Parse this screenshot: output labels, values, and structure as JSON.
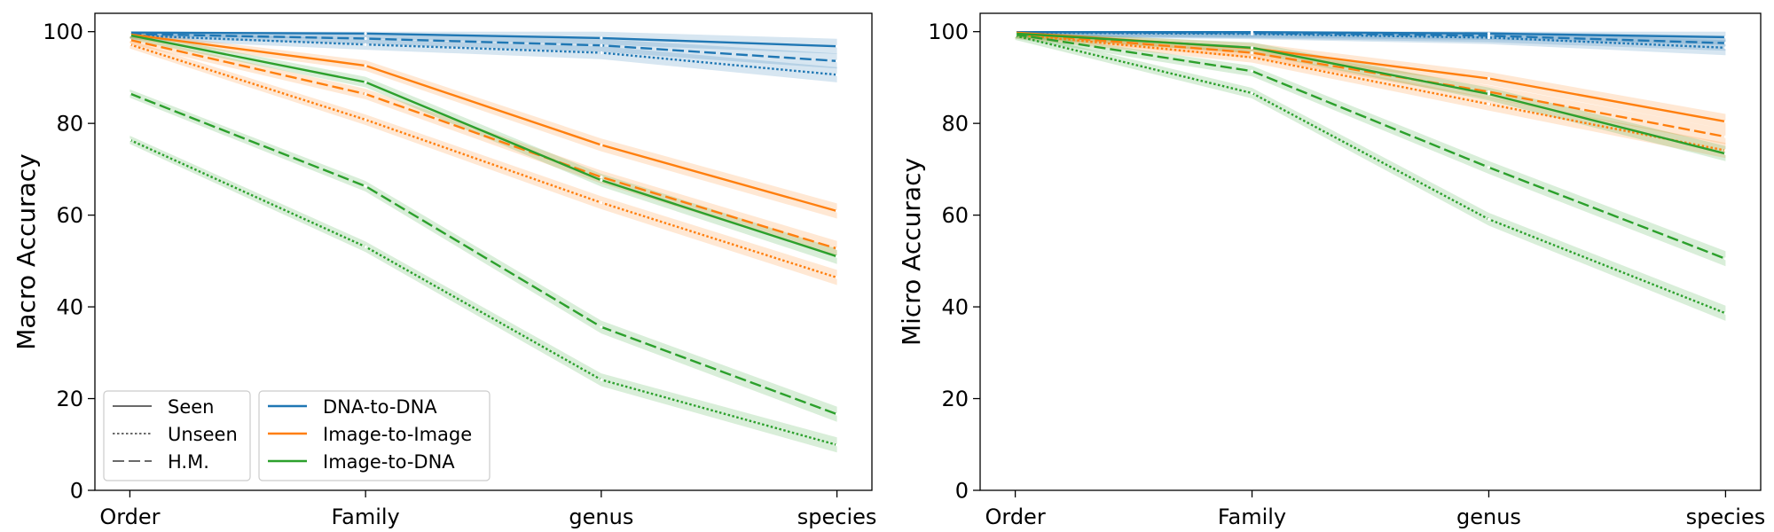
{
  "chart_data": [
    {
      "type": "line",
      "categories": [
        "Order",
        "Family",
        "genus",
        "species"
      ],
      "xlabel": "",
      "ylabel": "Macro Accuracy",
      "ylim": [
        0,
        104
      ],
      "yticks": [
        0,
        20,
        40,
        60,
        80,
        100
      ],
      "grid": false,
      "legend": "lower-left",
      "series": [
        {
          "name": "DNA-to-DNA",
          "style": "Seen",
          "color": "#1f77b4",
          "values": [
            99.8,
            99.6,
            98.6,
            96.8
          ]
        },
        {
          "name": "DNA-to-DNA",
          "style": "H.M.",
          "color": "#1f77b4",
          "values": [
            99.5,
            98.5,
            97.0,
            93.6
          ]
        },
        {
          "name": "DNA-to-DNA",
          "style": "Unseen",
          "color": "#1f77b4",
          "values": [
            99.2,
            97.2,
            95.4,
            90.6
          ]
        },
        {
          "name": "Image-to-Image",
          "style": "Seen",
          "color": "#ff7f0e",
          "values": [
            99.4,
            92.6,
            75.3,
            60.9
          ]
        },
        {
          "name": "Image-to-Image",
          "style": "H.M.",
          "color": "#ff7f0e",
          "values": [
            98.2,
            86.4,
            68.3,
            52.7
          ]
        },
        {
          "name": "Image-to-Image",
          "style": "Unseen",
          "color": "#ff7f0e",
          "values": [
            97.2,
            80.8,
            62.7,
            46.4
          ]
        },
        {
          "name": "Image-to-DNA",
          "style": "Seen",
          "color": "#2ca02c",
          "values": [
            99.2,
            89.0,
            67.6,
            51.0
          ]
        },
        {
          "name": "Image-to-DNA",
          "style": "H.M.",
          "color": "#2ca02c",
          "values": [
            86.5,
            66.3,
            35.6,
            16.6
          ]
        },
        {
          "name": "Image-to-DNA",
          "style": "Unseen",
          "color": "#2ca02c",
          "values": [
            76.4,
            53.1,
            24.1,
            9.9
          ]
        }
      ]
    },
    {
      "type": "line",
      "categories": [
        "Order",
        "Family",
        "genus",
        "species"
      ],
      "xlabel": "",
      "ylabel": "Micro Accuracy",
      "ylim": [
        0,
        104
      ],
      "yticks": [
        0,
        20,
        40,
        60,
        80,
        100
      ],
      "grid": false,
      "series": [
        {
          "name": "DNA-to-DNA",
          "style": "Seen",
          "color": "#1f77b4",
          "values": [
            99.9,
            99.9,
            99.6,
            98.8
          ]
        },
        {
          "name": "DNA-to-DNA",
          "style": "H.M.",
          "color": "#1f77b4",
          "values": [
            99.9,
            99.7,
            99.1,
            97.5
          ]
        },
        {
          "name": "DNA-to-DNA",
          "style": "Unseen",
          "color": "#1f77b4",
          "values": [
            99.8,
            99.5,
            98.7,
            96.5
          ]
        },
        {
          "name": "Image-to-Image",
          "style": "Seen",
          "color": "#ff7f0e",
          "values": [
            99.8,
            96.4,
            89.8,
            80.4
          ]
        },
        {
          "name": "Image-to-Image",
          "style": "H.M.",
          "color": "#ff7f0e",
          "values": [
            99.6,
            95.4,
            86.9,
            77.1
          ]
        },
        {
          "name": "Image-to-Image",
          "style": "Unseen",
          "color": "#ff7f0e",
          "values": [
            99.4,
            94.4,
            84.2,
            74.1
          ]
        },
        {
          "name": "Image-to-DNA",
          "style": "Seen",
          "color": "#2ca02c",
          "values": [
            99.6,
            96.5,
            86.4,
            73.4
          ]
        },
        {
          "name": "Image-to-DNA",
          "style": "H.M.",
          "color": "#2ca02c",
          "values": [
            99.4,
            91.4,
            70.4,
            50.5
          ]
        },
        {
          "name": "Image-to-DNA",
          "style": "Unseen",
          "color": "#2ca02c",
          "values": [
            99.1,
            86.6,
            59.1,
            38.6
          ]
        }
      ]
    }
  ],
  "legend": {
    "styles": [
      {
        "label": "Seen",
        "dash": "solid"
      },
      {
        "label": "Unseen",
        "dash": "dotted"
      },
      {
        "label": "H.M.",
        "dash": "dashed"
      }
    ],
    "methods": [
      {
        "label": "DNA-to-DNA",
        "color": "#1f77b4"
      },
      {
        "label": "Image-to-Image",
        "color": "#ff7f0e"
      },
      {
        "label": "Image-to-DNA",
        "color": "#2ca02c"
      }
    ]
  }
}
